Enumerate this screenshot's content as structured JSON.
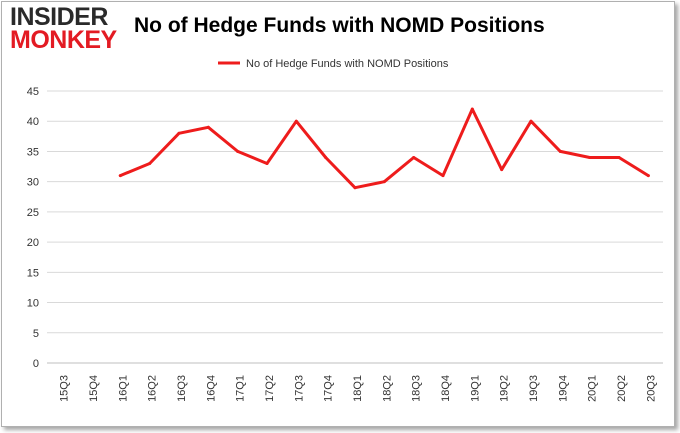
{
  "logo": {
    "line1": "INSIDER",
    "line2": "MONKEY"
  },
  "chart_data": {
    "type": "line",
    "title": "No of Hedge Funds with NOMD Positions",
    "xlabel": "",
    "ylabel": "",
    "ylim": [
      0,
      45
    ],
    "yticks": [
      0,
      5,
      10,
      15,
      20,
      25,
      30,
      35,
      40,
      45
    ],
    "grid": true,
    "legend_position": "top-center",
    "categories": [
      "15Q3",
      "15Q4",
      "16Q1",
      "16Q2",
      "16Q3",
      "16Q4",
      "17Q1",
      "17Q2",
      "17Q3",
      "17Q4",
      "18Q1",
      "18Q2",
      "18Q3",
      "18Q4",
      "19Q1",
      "19Q2",
      "19Q3",
      "19Q4",
      "20Q1",
      "20Q2",
      "20Q3"
    ],
    "series": [
      {
        "name": "No of Hedge Funds with NOMD Positions",
        "color": "#ee1c1c",
        "values": [
          null,
          null,
          31,
          33,
          38,
          39,
          35,
          33,
          40,
          34,
          29,
          30,
          34,
          31,
          42,
          32,
          40,
          35,
          34,
          34,
          31
        ]
      }
    ]
  }
}
